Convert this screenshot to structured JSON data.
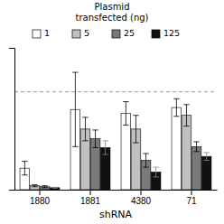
{
  "chart_data": {
    "type": "bar",
    "title": "Plasmid\ntransfected (ng)",
    "xlabel": "shRNA",
    "categories": [
      "1880",
      "1881",
      "4380",
      "71"
    ],
    "series": [
      {
        "name": "1",
        "color": "#ffffff",
        "values": [
          0.22,
          0.82,
          0.78,
          0.84
        ],
        "errors": [
          0.07,
          0.38,
          0.12,
          0.09
        ]
      },
      {
        "name": "5",
        "color": "#c0c0c0",
        "values": [
          0.04,
          0.62,
          0.62,
          0.76
        ],
        "errors": [
          0.01,
          0.12,
          0.14,
          0.11
        ]
      },
      {
        "name": "25",
        "color": "#7a7a7a",
        "values": [
          0.03,
          0.52,
          0.3,
          0.44
        ],
        "errors": [
          0.01,
          0.09,
          0.07,
          0.05
        ]
      },
      {
        "name": "125",
        "color": "#111111",
        "values": [
          0.02,
          0.43,
          0.18,
          0.34
        ],
        "errors": [
          0.005,
          0.07,
          0.05,
          0.04
        ]
      }
    ],
    "reference_line": 1.0,
    "ylim": [
      0,
      1.45
    ],
    "yticks": [],
    "tick_labels": "x",
    "grid": false,
    "legend": "top"
  }
}
